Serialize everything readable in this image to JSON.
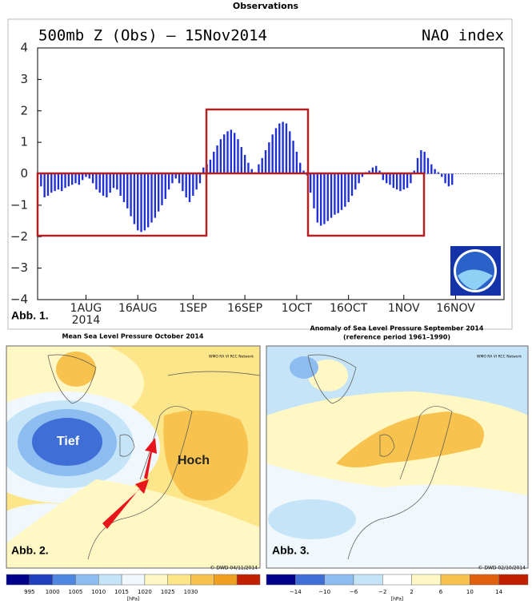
{
  "chart_data": {
    "type": "bar",
    "header": "Observations",
    "title": "500mb Z (Obs) — 15Nov2014",
    "title_right": "NAO index",
    "panel_label": "Abb. 1.",
    "year_label": "2014",
    "color": "#1f2fd6",
    "x": [
      200,
      201,
      202,
      203,
      204,
      205,
      206,
      207,
      208,
      209,
      210,
      211,
      212,
      213,
      214,
      215,
      216,
      217,
      218,
      219,
      220,
      221,
      222,
      223,
      224,
      225,
      226,
      227,
      228,
      229,
      230,
      231,
      232,
      233,
      234,
      235,
      236,
      237,
      238,
      239,
      240,
      241,
      242,
      243,
      244,
      245,
      246,
      247,
      248,
      249,
      250,
      251,
      252,
      253,
      254,
      255,
      256,
      257,
      258,
      259,
      260,
      261,
      262,
      263,
      264,
      265,
      266,
      267,
      268,
      269,
      270,
      271,
      272,
      273,
      274,
      275,
      276,
      277,
      278,
      279,
      280,
      281,
      282,
      283,
      284,
      285,
      286,
      287,
      288,
      289,
      290,
      291,
      292,
      293,
      294,
      295,
      296,
      297,
      298,
      299,
      300,
      301,
      302,
      303,
      304,
      305,
      306,
      307,
      308,
      309,
      310,
      311,
      312,
      313,
      314,
      315,
      316,
      317,
      318,
      319
    ],
    "values": [
      -0.4,
      -0.75,
      -0.7,
      -0.6,
      -0.55,
      -0.5,
      -0.55,
      -0.45,
      -0.4,
      -0.35,
      -0.3,
      -0.35,
      -0.2,
      -0.1,
      -0.15,
      -0.3,
      -0.5,
      -0.6,
      -0.7,
      -0.75,
      -0.6,
      -0.45,
      -0.5,
      -0.7,
      -0.9,
      -1.1,
      -1.35,
      -1.6,
      -1.8,
      -1.85,
      -1.8,
      -1.7,
      -1.55,
      -1.4,
      -1.2,
      -1.0,
      -0.8,
      -0.5,
      -0.3,
      -0.15,
      -0.3,
      -0.55,
      -0.75,
      -0.9,
      -0.7,
      -0.5,
      -0.3,
      0.2,
      0.3,
      0.45,
      0.7,
      0.9,
      1.1,
      1.25,
      1.35,
      1.4,
      1.3,
      1.1,
      0.85,
      0.6,
      0.35,
      0.15,
      0.05,
      0.3,
      0.5,
      0.75,
      1.0,
      1.25,
      1.45,
      1.6,
      1.65,
      1.6,
      1.35,
      1.05,
      0.7,
      0.35,
      0.1,
      -0.05,
      -0.6,
      -1.1,
      -1.55,
      -1.65,
      -1.6,
      -1.5,
      -1.4,
      -1.3,
      -1.25,
      -1.15,
      -1.05,
      -0.9,
      -0.7,
      -0.5,
      -0.3,
      -0.1,
      0.05,
      0.1,
      0.2,
      0.25,
      0.1,
      -0.2,
      -0.3,
      -0.35,
      -0.45,
      -0.5,
      -0.55,
      -0.5,
      -0.45,
      -0.3,
      0.1,
      0.5,
      0.75,
      0.7,
      0.5,
      0.3,
      0.15,
      0.05,
      -0.1,
      -0.3,
      -0.4,
      -0.35
    ],
    "xlim": [
      199,
      334
    ],
    "xticks": [
      {
        "value": 213,
        "label": "1AUG"
      },
      {
        "value": 228,
        "label": "16AUG"
      },
      {
        "value": 244,
        "label": "1SEP"
      },
      {
        "value": 259,
        "label": "16SEP"
      },
      {
        "value": 274,
        "label": "1OCT"
      },
      {
        "value": 289,
        "label": "16OCT"
      },
      {
        "value": 305,
        "label": "1NOV"
      },
      {
        "value": 320,
        "label": "16NOV"
      }
    ],
    "ylim": [
      -4,
      4
    ],
    "yticks": [
      {
        "value": -4,
        "label": "−4"
      },
      {
        "value": -3,
        "label": "−3"
      },
      {
        "value": -2,
        "label": "−2"
      },
      {
        "value": -1,
        "label": "−1"
      },
      0,
      1,
      2,
      3,
      4
    ]
  },
  "maps": [
    {
      "title": "Mean Sea Level Pressure October 2014",
      "network": "WMO RA VI RCC Network",
      "low": "Tief",
      "high": "Hoch",
      "panel_label": "Abb. 2.",
      "copyright": "© DWD 04/11/2014",
      "colorbar": {
        "labels": [
          "995",
          "1000",
          "1005",
          "1010",
          "1015",
          "1020",
          "1025",
          "1030"
        ],
        "unit": "[hPa]"
      }
    },
    {
      "title": "Anomaly of Sea Level Pressure September 2014",
      "subtitle": "(reference period 1961–1990)",
      "network": "WMO RA VI RCC Network",
      "panel_label": "Abb. 3.",
      "copyright": "© DWD 02/10/2014",
      "colorbar": {
        "labels": [
          "−14",
          "−10",
          "−6",
          "−2",
          "2",
          "6",
          "10",
          "14"
        ],
        "unit": "[hPa]"
      }
    }
  ]
}
